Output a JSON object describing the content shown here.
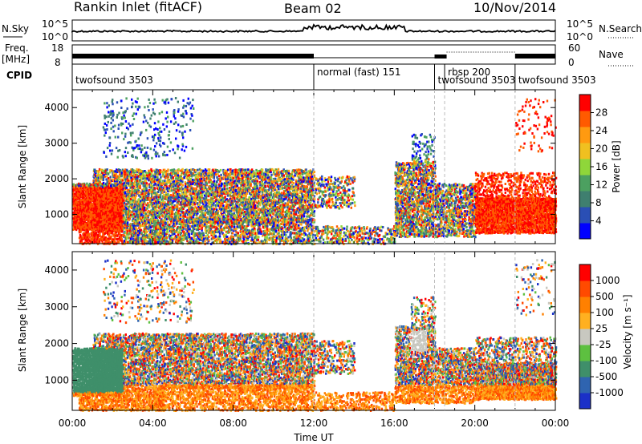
{
  "header": {
    "station": "Rankin Inlet (fitACF)",
    "beam": "Beam 02",
    "date": "10/Nov/2014"
  },
  "top_panels": {
    "nsky_label": "N.Sky",
    "nsky_ticks": [
      "10^5",
      "10^0"
    ],
    "nsearch_label": "N.Search",
    "nsearch_ticks": [
      "10^5",
      "10^0"
    ],
    "freq_label": "Freq.",
    "freq_unit": "[MHz]",
    "freq_ticks": [
      "18",
      "8"
    ],
    "nave_label": "Nave",
    "nave_ticks": [
      "60",
      "0"
    ],
    "cpid_label": "CPID",
    "cpid_segments": [
      {
        "label": "twofsound 3503",
        "start_hour": 0
      },
      {
        "label": "normal (fast) 151",
        "start_hour": 12.0
      },
      {
        "label": "twofsound 3503",
        "start_hour": 18.0
      },
      {
        "label": "rbsp 200",
        "start_hour": 18.5
      },
      {
        "label": "twofsound 3503",
        "start_hour": 22.0
      }
    ]
  },
  "chart_data": [
    {
      "type": "heatmap",
      "name": "power",
      "ylabel": "Slant Range [km]",
      "xlim": [
        0,
        24
      ],
      "ylim": [
        180,
        4500
      ],
      "yticks": [
        "1000",
        "2000",
        "3000",
        "4000"
      ],
      "colorbar_label": "Power [dB]",
      "colorbar_ticks": [
        "28",
        "24",
        "20",
        "16",
        "12",
        "8",
        "4"
      ],
      "colorbar_colors": [
        "#0000ff",
        "#2a4fb5",
        "#3f7f6f",
        "#4ca060",
        "#8fd63a",
        "#f0c020",
        "#ff9a10",
        "#ff5a00",
        "#ff0000"
      ]
    },
    {
      "type": "heatmap",
      "name": "velocity",
      "ylabel": "Slant Range [km]",
      "xlabel": "Time UT",
      "xlim": [
        0,
        24
      ],
      "ylim": [
        180,
        4500
      ],
      "xticks": [
        "00:00",
        "04:00",
        "08:00",
        "12:00",
        "16:00",
        "20:00",
        "00:00"
      ],
      "yticks": [
        "1000",
        "2000",
        "3000",
        "4000"
      ],
      "colorbar_label": "Velocity [m s⁻¹]",
      "colorbar_ticks": [
        "1000",
        "500",
        "100",
        "25",
        "-25",
        "-100",
        "-500",
        "-1000"
      ],
      "colorbar_colors": [
        "#1b30c8",
        "#2f64b0",
        "#3f8f6a",
        "#5dc040",
        "#c8c8c0",
        "#ffb020",
        "#ff8000",
        "#ff4a00",
        "#ff0000"
      ]
    }
  ]
}
